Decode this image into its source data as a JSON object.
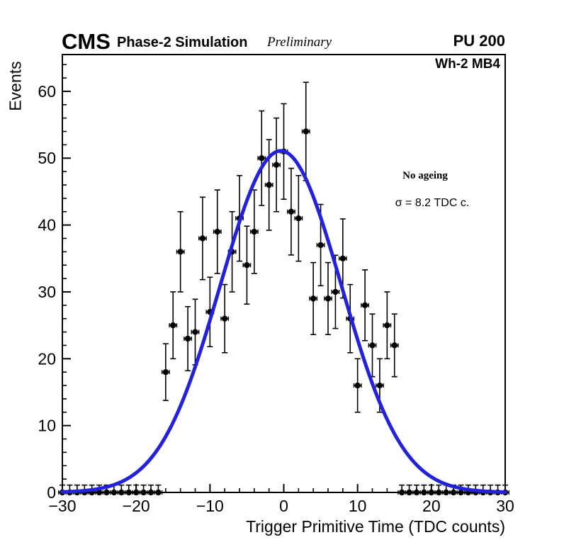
{
  "header": {
    "experiment": "CMS",
    "subtitle": "Phase-2 Simulation",
    "status": "Preliminary",
    "pileup": "PU 200"
  },
  "plot": {
    "chamber_label": "Wh-2 MB4",
    "annotation_line1": "No ageing",
    "annotation_line2": "σ = 8.2 TDC c."
  },
  "chart_data": {
    "type": "scatter",
    "title": "",
    "xlabel": "Trigger Primitive Time (TDC counts)",
    "ylabel": "Events",
    "xlim": [
      -30,
      30
    ],
    "ylim": [
      0,
      65.5
    ],
    "x_ticks": [
      -30,
      -20,
      -10,
      0,
      10,
      20,
      30
    ],
    "y_ticks": [
      0,
      10,
      20,
      30,
      40,
      50,
      60
    ],
    "minor_tick_step": 2,
    "grid": false,
    "legend": "none",
    "marker_color": "#000000",
    "error_mode": "sqrt",
    "zero_bin_error_up": 1.1,
    "bin_half_width": 0.5,
    "points": [
      [
        -30,
        0
      ],
      [
        -29,
        0
      ],
      [
        -28,
        0
      ],
      [
        -27,
        0
      ],
      [
        -26,
        0
      ],
      [
        -25,
        0
      ],
      [
        -24,
        0
      ],
      [
        -23,
        0
      ],
      [
        -22,
        0
      ],
      [
        -21,
        0
      ],
      [
        -20,
        0
      ],
      [
        -19,
        0
      ],
      [
        -18,
        0
      ],
      [
        -17,
        0
      ],
      [
        -16,
        18
      ],
      [
        -15,
        25
      ],
      [
        -14,
        36
      ],
      [
        -13,
        23
      ],
      [
        -12,
        24
      ],
      [
        -11,
        38
      ],
      [
        -10,
        27
      ],
      [
        -9,
        39
      ],
      [
        -8,
        26
      ],
      [
        -7,
        36
      ],
      [
        -6,
        41
      ],
      [
        -5,
        34
      ],
      [
        -4,
        39
      ],
      [
        -3,
        50
      ],
      [
        -2,
        46
      ],
      [
        -1,
        49
      ],
      [
        0,
        51
      ],
      [
        1,
        42
      ],
      [
        2,
        41
      ],
      [
        3,
        54
      ],
      [
        4,
        29
      ],
      [
        5,
        37
      ],
      [
        6,
        29
      ],
      [
        7,
        30
      ],
      [
        8,
        35
      ],
      [
        9,
        26
      ],
      [
        10,
        16
      ],
      [
        11,
        28
      ],
      [
        12,
        22
      ],
      [
        13,
        16
      ],
      [
        14,
        25
      ],
      [
        15,
        22
      ],
      [
        16,
        0
      ],
      [
        17,
        0
      ],
      [
        18,
        0
      ],
      [
        19,
        0
      ],
      [
        20,
        0
      ],
      [
        21,
        0
      ],
      [
        22,
        0
      ],
      [
        23,
        0
      ],
      [
        24,
        0
      ],
      [
        25,
        0
      ],
      [
        26,
        0
      ],
      [
        27,
        0
      ],
      [
        28,
        0
      ],
      [
        29,
        0
      ],
      [
        30,
        0
      ]
    ],
    "fit": {
      "type": "gaussian",
      "amplitude": 51.1,
      "mean": -0.4,
      "sigma": 8.2,
      "color": "#2222dd",
      "line_width": 5
    }
  }
}
